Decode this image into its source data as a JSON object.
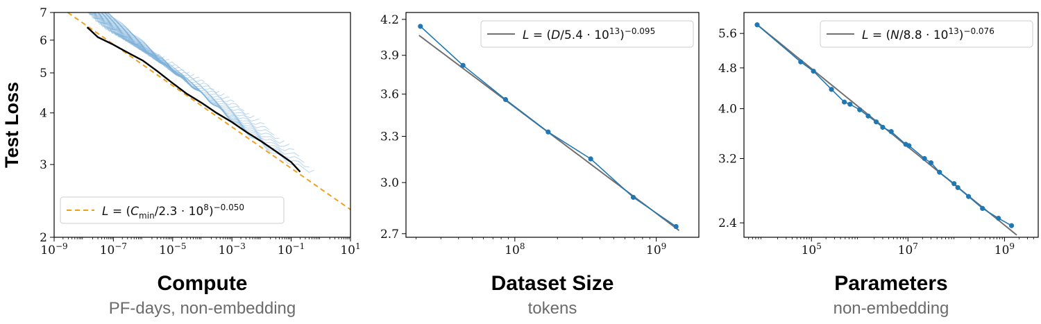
{
  "chart_data": [
    {
      "type": "line",
      "ylabel": "Test Loss",
      "xlabel": "Compute",
      "xlabel_sub": "PF-days, non-embedding",
      "xscale": "log",
      "yscale": "log",
      "xlim": [
        1e-09,
        10
      ],
      "ylim": [
        2,
        7
      ],
      "x_ticks": [
        {
          "base": "10",
          "exp": "−9",
          "value": 1e-09
        },
        {
          "base": "10",
          "exp": "−7",
          "value": 1e-07
        },
        {
          "base": "10",
          "exp": "−5",
          "value": 1e-05
        },
        {
          "base": "10",
          "exp": "−3",
          "value": 0.001
        },
        {
          "base": "10",
          "exp": "−1",
          "value": 0.1
        },
        {
          "base": "10",
          "exp": "1",
          "value": 10
        }
      ],
      "y_ticks": [
        {
          "label": "2",
          "value": 2
        },
        {
          "label": "3",
          "value": 3
        },
        {
          "label": "4",
          "value": 4
        },
        {
          "label": "5",
          "value": 5
        },
        {
          "label": "6",
          "value": 6
        },
        {
          "label": "7",
          "value": 7
        }
      ],
      "legend": {
        "position": "lower-left",
        "entries": [
          {
            "label": "L = (C_min/2.3 · 10^8)^−0.050",
            "color": "#f0a020",
            "style": "dashed"
          }
        ]
      },
      "fit": {
        "c0": 230000000.0,
        "alpha": 0.05,
        "color": "#f0a020"
      },
      "frontier": {
        "color": "#000000",
        "x": [
          1.3e-08,
          3e-08,
          1e-07,
          3e-07,
          1e-06,
          3e-06,
          1e-05,
          3e-05,
          0.0001,
          0.0003,
          0.001,
          0.003,
          0.01,
          0.03,
          0.1,
          0.2
        ],
        "y": [
          6.45,
          6.1,
          5.85,
          5.6,
          5.35,
          5.05,
          4.72,
          4.45,
          4.22,
          4.0,
          3.8,
          3.6,
          3.41,
          3.23,
          3.04,
          2.88
        ]
      },
      "curves": {
        "color": "#7fb2d9",
        "count": 40,
        "x_min": 1e-08,
        "x_max": 0.6,
        "y_max": 7.2,
        "floor": 2.72
      }
    },
    {
      "type": "line",
      "xlabel": "Dataset Size",
      "xlabel_sub": "tokens",
      "xscale": "log",
      "yscale": "log",
      "xlim": [
        17000000.0,
        2000000000.0
      ],
      "ylim": [
        2.68,
        4.26
      ],
      "x_ticks": [
        {
          "base": "10",
          "exp": "8",
          "value": 100000000.0
        },
        {
          "base": "10",
          "exp": "9",
          "value": 1000000000.0
        }
      ],
      "y_ticks": [
        {
          "label": "2.7",
          "value": 2.7
        },
        {
          "label": "3.0",
          "value": 3.0
        },
        {
          "label": "3.3",
          "value": 3.3
        },
        {
          "label": "3.6",
          "value": 3.6
        },
        {
          "label": "3.9",
          "value": 3.9
        },
        {
          "label": "4.2",
          "value": 4.2
        }
      ],
      "legend": {
        "position": "top-right",
        "entries": [
          {
            "label": "L = (D/5.4 · 10^13)^−0.095",
            "color": "#707070",
            "style": "solid"
          }
        ]
      },
      "fit": {
        "c0": 54000000000000.0,
        "alpha": 0.095,
        "color": "#707070",
        "x_range": [
          21000000.0,
          1450000000.0
        ]
      },
      "series": [
        {
          "color": "#1f77b4",
          "x": [
            21500000.0,
            43000000.0,
            86000000.0,
            172000000.0,
            344000000.0,
            688000000.0,
            1380000000.0
          ],
          "y": [
            4.14,
            3.82,
            3.56,
            3.33,
            3.15,
            2.91,
            2.74
          ]
        }
      ]
    },
    {
      "type": "line",
      "xlabel": "Parameters",
      "xlabel_sub": "non-embedding",
      "xscale": "log",
      "yscale": "log",
      "xlim": [
        4000.0,
        5000000000.0
      ],
      "ylim": [
        2.25,
        6.15
      ],
      "x_ticks": [
        {
          "base": "10",
          "exp": "5",
          "value": 100000.0
        },
        {
          "base": "10",
          "exp": "7",
          "value": 10000000.0
        },
        {
          "base": "10",
          "exp": "9",
          "value": 1000000000.0
        }
      ],
      "y_ticks": [
        {
          "label": "2.4",
          "value": 2.4
        },
        {
          "label": "3.2",
          "value": 3.2
        },
        {
          "label": "4.0",
          "value": 4.0
        },
        {
          "label": "4.8",
          "value": 4.8
        },
        {
          "label": "5.6",
          "value": 5.6
        }
      ],
      "legend": {
        "position": "top-right",
        "entries": [
          {
            "label": "L = (N/8.8 · 10^13)^−0.076",
            "color": "#707070",
            "style": "solid"
          }
        ]
      },
      "fit": {
        "c0": 88000000000000.0,
        "alpha": 0.076,
        "color": "#707070",
        "x_range": [
          7000.0,
          1800000000.0
        ]
      },
      "series": [
        {
          "color": "#1f77b4",
          "x": [
            7500.0,
            60000.0,
            110000.0,
            260000.0,
            480000.0,
            630000.0,
            1000000.0,
            1500000.0,
            2200000.0,
            3000000.0,
            4500000.0,
            9000000.0,
            10500000.0,
            22000000.0,
            30000000.0,
            45000000.0,
            90000000.0,
            108000000.0,
            180000000.0,
            350000000.0,
            750000000.0,
            1400000000.0
          ],
          "y": [
            5.82,
            4.93,
            4.73,
            4.36,
            4.12,
            4.08,
            3.98,
            3.87,
            3.77,
            3.68,
            3.61,
            3.41,
            3.39,
            3.2,
            3.14,
            3.01,
            2.86,
            2.81,
            2.7,
            2.56,
            2.45,
            2.37
          ]
        }
      ]
    }
  ]
}
